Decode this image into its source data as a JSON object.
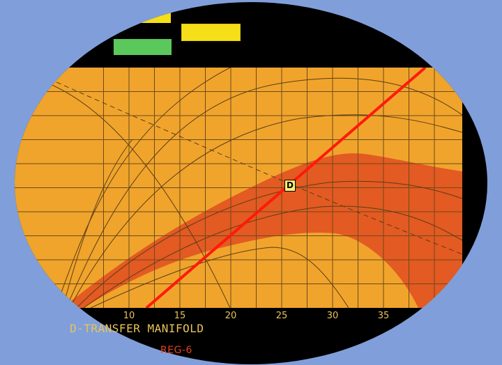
{
  "colors": {
    "page_background": "#809fda",
    "screen": "#000000",
    "plot_background": "#f0a42c",
    "envelope_band": "#e35a22",
    "operating_line": "#ff1a0a",
    "grid": "#6b4a1c",
    "indicator_yellow": "#f5df18",
    "indicator_green": "#5bc85c",
    "axis_text": "#e9c35a",
    "reg_text": "#e2421f"
  },
  "indicators": [
    {
      "name": "yellow-indicator-small",
      "color": "yellow"
    },
    {
      "name": "yellow-indicator",
      "color": "yellow"
    },
    {
      "name": "green-indicator",
      "color": "green"
    }
  ],
  "chart_data": {
    "type": "line",
    "x_ticks": [
      "10",
      "15",
      "20",
      "25",
      "30",
      "35"
    ],
    "xlim": [
      7.5,
      40
    ],
    "grid": true,
    "marker": {
      "label": "D",
      "x": 27,
      "relative_y": 0.55
    }
  },
  "footer": {
    "title": "D-TRANSFER  MANIFOLD",
    "reg": "REG-6"
  }
}
